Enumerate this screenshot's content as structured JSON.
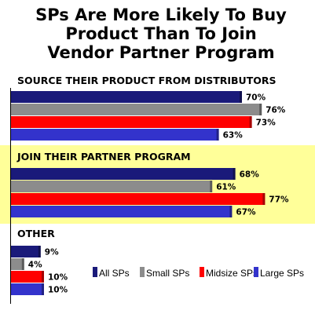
{
  "chart_data": {
    "type": "bar",
    "orientation": "horizontal",
    "title": [
      "SPs Are More Likely To Buy",
      "Product Than To Join",
      "Vendor Partner Program"
    ],
    "categories": [
      "SOURCE THEIR PRODUCT FROM DISTRIBUTORS",
      "JOIN THEIR PARTNER PROGRAM",
      "OTHER"
    ],
    "highlighted_category": "JOIN THEIR PARTNER PROGRAM",
    "series": [
      {
        "name": "All SPs",
        "color": "#1a1a7a",
        "values": [
          70,
          68,
          9
        ],
        "labels": [
          "70%",
          "68%",
          "9%"
        ]
      },
      {
        "name": "Small SPs",
        "color": "#8c8c8c",
        "values": [
          76,
          61,
          4
        ],
        "labels": [
          "76%",
          "61%",
          "4%"
        ]
      },
      {
        "name": "Midsize SPs",
        "color": "#ff0000",
        "values": [
          73,
          77,
          10
        ],
        "labels": [
          "73%",
          "77%",
          "10%"
        ]
      },
      {
        "name": "Large SPs",
        "color": "#3333cc",
        "values": [
          63,
          67,
          10
        ],
        "labels": [
          "63%",
          "67%",
          "10%"
        ]
      }
    ],
    "xlim": [
      0,
      100
    ],
    "legend_position": "bottom-right",
    "highlight_color": "#ffff99"
  }
}
